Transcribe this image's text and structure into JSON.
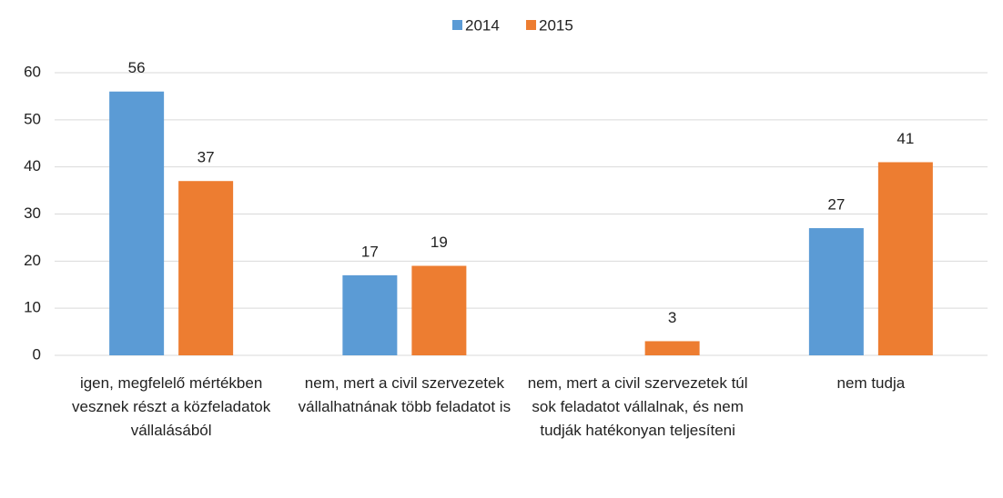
{
  "chart_data": {
    "type": "bar",
    "categories": [
      "igen, megfelelő mértékben vesznek részt a közfeladatok vállalásából",
      "nem, mert a civil szervezetek vállalhatnának több feladatot is",
      "nem, mert a civil szervezetek túl sok feladatot vállalnak, és nem tudják hatékonyan teljesíteni",
      "nem tudja"
    ],
    "series": [
      {
        "name": "2014",
        "color": "#5b9bd5",
        "values": [
          56,
          17,
          null,
          27
        ]
      },
      {
        "name": "2015",
        "color": "#ed7d31",
        "values": [
          37,
          19,
          3,
          41
        ]
      }
    ],
    "ylim": [
      0,
      60
    ],
    "yticks": [
      0,
      10,
      20,
      30,
      40,
      50,
      60
    ],
    "grid": true,
    "legend": "top"
  }
}
